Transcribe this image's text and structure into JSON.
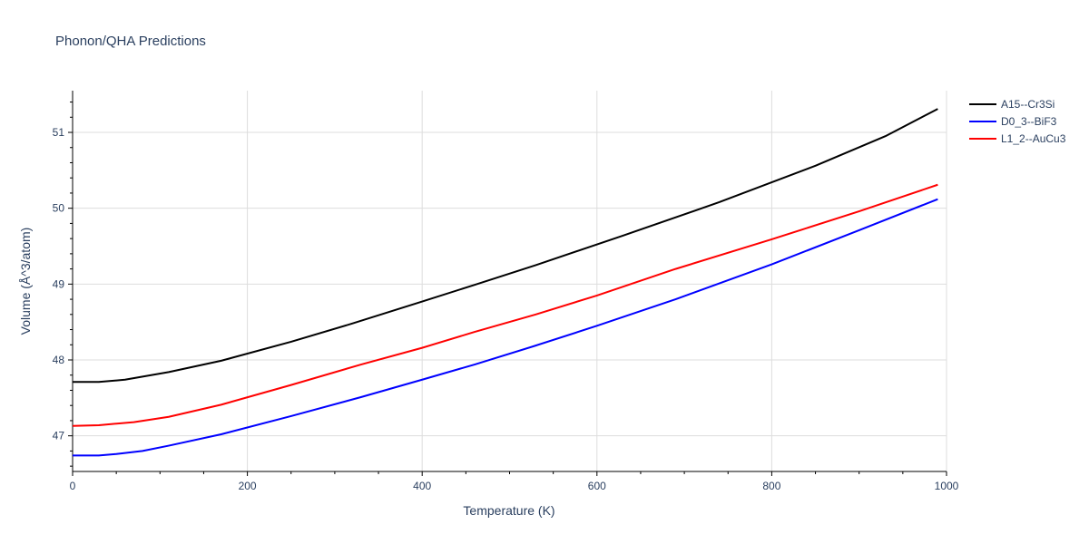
{
  "chart_data": {
    "type": "line",
    "title": "Phonon/QHA Predictions",
    "xlabel": "Temperature (K)",
    "ylabel": "Volume (Å^3/atom)",
    "xlim": [
      0,
      1000
    ],
    "ylim": [
      46.53,
      51.55
    ],
    "xticks": [
      0,
      200,
      400,
      600,
      800,
      1000
    ],
    "yticks": [
      47,
      48,
      49,
      50,
      51
    ],
    "grid": true,
    "legend_position": "top-right",
    "series": [
      {
        "name": "A15--Cr3Si",
        "color": "#000000",
        "x": [
          0,
          30,
          60,
          110,
          170,
          250,
          320,
          400,
          460,
          530,
          630,
          740,
          850,
          930,
          990
        ],
        "y": [
          47.71,
          47.71,
          47.74,
          47.84,
          47.99,
          48.24,
          48.48,
          48.77,
          48.99,
          49.25,
          49.64,
          50.08,
          50.56,
          50.95,
          51.31
        ]
      },
      {
        "name": "D0_3--BiF3",
        "color": "#0000ff",
        "x": [
          0,
          30,
          50,
          80,
          110,
          170,
          250,
          330,
          400,
          460,
          530,
          600,
          690,
          800,
          900,
          990
        ],
        "y": [
          46.74,
          46.74,
          46.76,
          46.8,
          46.87,
          47.02,
          47.26,
          47.51,
          47.74,
          47.94,
          48.19,
          48.45,
          48.8,
          49.26,
          49.71,
          50.12
        ]
      },
      {
        "name": "L1_2--AuCu3",
        "color": "#ff0000",
        "x": [
          0,
          30,
          70,
          110,
          170,
          250,
          330,
          400,
          460,
          530,
          600,
          690,
          800,
          900,
          990
        ],
        "y": [
          47.13,
          47.14,
          47.18,
          47.25,
          47.41,
          47.67,
          47.94,
          48.16,
          48.37,
          48.6,
          48.85,
          49.2,
          49.59,
          49.96,
          50.31
        ]
      }
    ]
  }
}
